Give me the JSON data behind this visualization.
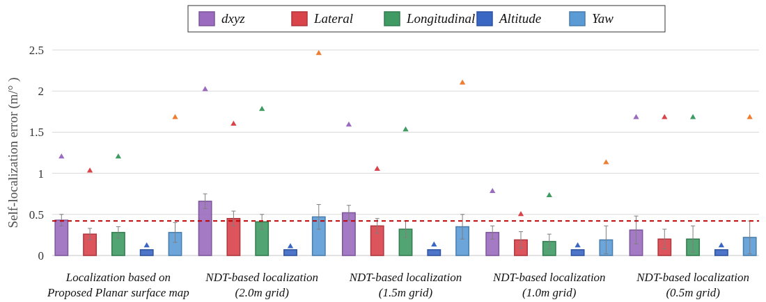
{
  "chart_data": {
    "type": "bar",
    "ylabel": "Self-localization error (m/° )",
    "categories": [
      "Localization based on\nProposed Planar surface map",
      "NDT-based localization\n(2.0m grid)",
      "NDT-based localization\n(1.5m grid)",
      "NDT-based localization\n(1.0m grid)",
      "NDT-based localization\n(0.5m grid)"
    ],
    "series": [
      {
        "name": "dxyz",
        "color": "#9b6bbf",
        "values": [
          0.43,
          0.66,
          0.52,
          0.28,
          0.31
        ],
        "errors": [
          0.07,
          0.09,
          0.09,
          0.08,
          0.17
        ]
      },
      {
        "name": "Lateral",
        "color": "#d9434a",
        "values": [
          0.26,
          0.45,
          0.36,
          0.19,
          0.2
        ],
        "errors": [
          0.07,
          0.09,
          0.09,
          0.1,
          0.12
        ]
      },
      {
        "name": "Longitudinal",
        "color": "#3f9a63",
        "values": [
          0.28,
          0.41,
          0.32,
          0.17,
          0.2
        ],
        "errors": [
          0.07,
          0.09,
          0.1,
          0.09,
          0.16
        ]
      },
      {
        "name": "Altitude",
        "color": "#3a67c4",
        "values": [
          0.07,
          0.07,
          0.07,
          0.07,
          0.07
        ]
      },
      {
        "name": "Yaw",
        "color": "#5b9bd5",
        "values": [
          0.28,
          0.47,
          0.35,
          0.19,
          0.22
        ],
        "errors": [
          0.12,
          0.15,
          0.15,
          0.17,
          0.2
        ]
      },
      {
        "type": "scatter",
        "color": "#9b6bbf",
        "x": [
          "Localization based on\nProposed Planar surface map",
          "NDT-based localization\n(2.0m grid)",
          "NDT-based localization\n(1.5m grid)",
          "NDT-based localization\n(1.0m grid)",
          "NDT-based localization\n(0.5m grid)"
        ],
        "values": [
          1.2,
          2.02,
          1.59,
          0.78,
          1.68
        ]
      },
      {
        "type": "scatter",
        "color": "#d9434a",
        "x": [
          "Localization based on\nProposed Planar surface map",
          "NDT-based localization\n(2.0m grid)",
          "NDT-based localization\n(1.5m grid)",
          "NDT-based localization\n(1.0m grid)",
          "NDT-based localization\n(0.5m grid)"
        ],
        "values": [
          1.03,
          1.6,
          1.05,
          0.5,
          1.68
        ]
      },
      {
        "type": "scatter",
        "color": "#3f9a63",
        "x": [
          "Localization based on\nProposed Planar surface map",
          "NDT-based localization\n(2.0m grid)",
          "NDT-based localization\n(1.5m grid)",
          "NDT-based localization\n(1.0m grid)",
          "NDT-based localization\n(0.5m grid)"
        ],
        "values": [
          1.2,
          1.78,
          1.53,
          0.73,
          1.68
        ]
      },
      {
        "type": "scatter",
        "color": "#3a67c4",
        "x": [
          "Localization based on\nProposed Planar surface map",
          "NDT-based localization\n(2.0m grid)",
          "NDT-based localization\n(1.5m grid)",
          "NDT-based localization\n(1.0m grid)",
          "NDT-based localization\n(0.5m grid)"
        ],
        "values": [
          0.12,
          0.11,
          0.13,
          0.12,
          0.12
        ]
      },
      {
        "type": "scatter",
        "color": "#ed7d31",
        "x": [
          "Localization based on\nProposed Planar surface map",
          "NDT-based localization\n(2.0m grid)",
          "NDT-based localization\n(1.5m grid)",
          "NDT-based localization\n(1.0m grid)",
          "NDT-based localization\n(0.5m grid)"
        ],
        "values": [
          1.68,
          2.46,
          2.1,
          1.13,
          1.68
        ]
      }
    ],
    "ylim": [
      0,
      2.5
    ],
    "yticks": [
      0,
      {
        "value": 0.5,
        "label": "0.5"
      },
      1,
      {
        "value": 1.5,
        "label": "1.5"
      },
      2,
      {
        "value": 2.5,
        "label": "2.5"
      }
    ],
    "grid": "y",
    "legend": "top",
    "marker": "triangle",
    "ref_lines": [
      {
        "axis": "y",
        "value": 0.42,
        "color": "#c00000",
        "line_style": "dashed"
      }
    ]
  }
}
